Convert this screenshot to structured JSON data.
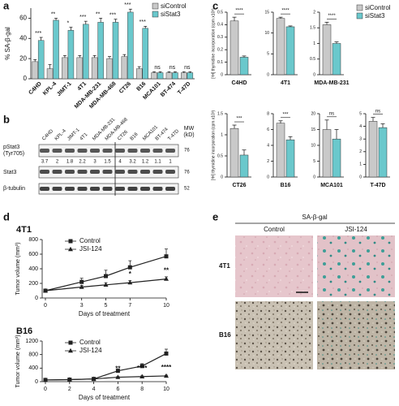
{
  "panel_labels": [
    "a",
    "b",
    "c",
    "d",
    "e"
  ],
  "chart_data": [
    {
      "type": "bar",
      "ylabel": "% SA-β-gal",
      "categories": [
        "C4HD",
        "KPL-4",
        "JIMT-1",
        "4T1",
        "MDA-MB-231",
        "MDA-MB-468",
        "CT26",
        "B16",
        "MCA101",
        "BT-474",
        "T-47D"
      ],
      "series": [
        {
          "name": "siControl",
          "color": "#c9c9c9",
          "values": [
            17,
            10,
            21,
            21,
            21,
            20,
            22,
            10,
            6,
            6,
            6
          ],
          "errors": [
            2,
            4,
            2,
            2,
            2,
            2,
            2,
            2,
            1,
            1,
            1
          ]
        },
        {
          "name": "siStat3",
          "color": "#6ac8cc",
          "values": [
            38,
            58,
            48,
            54,
            56,
            56,
            66,
            50,
            6,
            6,
            6
          ],
          "errors": [
            3,
            2,
            3,
            3,
            4,
            3,
            3,
            2,
            1,
            1,
            1
          ]
        }
      ],
      "annotations": [
        "***",
        "**",
        "*",
        "***",
        "**",
        "***",
        "***",
        "***",
        "ns",
        "ns",
        "ns"
      ],
      "ylim": [
        0,
        70
      ],
      "yticks": [
        0,
        20,
        40,
        60
      ],
      "legend": "upper right"
    },
    {
      "type": "bar",
      "ylabel": "[³H] thymidine incorporation (cpm x10³)",
      "series_names": [
        "siControl",
        "siStat3"
      ],
      "colors": [
        "#c9c9c9",
        "#6ac8cc"
      ],
      "legend": "upper right",
      "panels": [
        {
          "title": "C4HD",
          "values": [
            0.43,
            0.14
          ],
          "errors": [
            0.03,
            0.01
          ],
          "ylim": [
            0,
            0.5
          ],
          "yticks": [
            0,
            0.1,
            0.2,
            0.3,
            0.4,
            0.5
          ],
          "annotation": "****"
        },
        {
          "title": "4T1",
          "values": [
            13.5,
            11.5
          ],
          "errors": [
            0.3,
            0.2
          ],
          "ylim": [
            0,
            15
          ],
          "yticks": [
            0,
            5,
            10,
            15
          ],
          "annotation": "****"
        },
        {
          "title": "MDA-MB-231",
          "values": [
            1.6,
            1.0
          ],
          "errors": [
            0.08,
            0.05
          ],
          "ylim": [
            0,
            2
          ],
          "yticks": [
            0,
            0.5,
            1,
            1.5,
            2
          ],
          "annotation": "****"
        },
        {
          "title": "CT26",
          "values": [
            1.15,
            0.52
          ],
          "errors": [
            0.08,
            0.12
          ],
          "ylim": [
            0,
            1.5
          ],
          "yticks": [
            0,
            0.5,
            1,
            1.5
          ],
          "annotation": "***"
        },
        {
          "title": "B16",
          "values": [
            6.8,
            4.7
          ],
          "errors": [
            0.3,
            0.4
          ],
          "ylim": [
            0,
            8
          ],
          "yticks": [
            0,
            2,
            4,
            6,
            8
          ],
          "annotation": "***"
        },
        {
          "title": "MCA101",
          "values": [
            15,
            12
          ],
          "errors": [
            3,
            3
          ],
          "ylim": [
            0,
            20
          ],
          "yticks": [
            0,
            5,
            10,
            15,
            20
          ],
          "annotation": "ns"
        },
        {
          "title": "T-47D",
          "values": [
            4.4,
            3.9
          ],
          "errors": [
            0.3,
            0.3
          ],
          "ylim": [
            0,
            5
          ],
          "yticks": [
            0,
            1,
            2,
            3,
            4,
            5
          ],
          "annotation": "ns"
        }
      ]
    },
    {
      "type": "line",
      "title": "4T1",
      "ylabel": "Tumor volume (mm³)",
      "xlabel": "Days of treatment",
      "x": [
        0,
        3,
        5,
        7,
        10
      ],
      "xlim": [
        0,
        10
      ],
      "xticks": [
        0,
        3,
        5,
        7,
        10
      ],
      "ylim": [
        0,
        800
      ],
      "yticks": [
        0,
        200,
        400,
        600,
        800
      ],
      "series": [
        {
          "name": "Control",
          "color": "#222222",
          "marker": "square",
          "values": [
            100,
            220,
            300,
            420,
            570
          ],
          "errors": [
            10,
            50,
            80,
            90,
            100
          ]
        },
        {
          "name": "JSI-124",
          "color": "#222222",
          "marker": "triangle",
          "values": [
            100,
            150,
            180,
            210,
            260
          ],
          "errors": [
            10,
            20,
            30,
            30,
            30
          ]
        }
      ],
      "annotations": [
        {
          "x": 7,
          "text": "*"
        },
        {
          "x": 10,
          "text": "**"
        }
      ],
      "legend": "upper left"
    },
    {
      "type": "line",
      "title": "B16",
      "ylabel": "Tumor volume (mm³)",
      "xlabel": "Days of treatment",
      "x": [
        0,
        2,
        4,
        6,
        8,
        10
      ],
      "xlim": [
        0,
        10
      ],
      "xticks": [
        0,
        2,
        4,
        6,
        8,
        10
      ],
      "ylim": [
        0,
        1200
      ],
      "yticks": [
        0,
        400,
        800,
        1200
      ],
      "series": [
        {
          "name": "Control",
          "color": "#222222",
          "marker": "square",
          "values": [
            50,
            60,
            80,
            320,
            460,
            830
          ],
          "errors": [
            10,
            10,
            15,
            50,
            70,
            130
          ]
        },
        {
          "name": "JSI-124",
          "color": "#222222",
          "marker": "triangle",
          "values": [
            50,
            60,
            80,
            130,
            150,
            170
          ],
          "errors": [
            10,
            10,
            15,
            20,
            20,
            20
          ]
        }
      ],
      "annotations": [
        {
          "x": 6,
          "text": "**"
        },
        {
          "x": 8,
          "text": "****"
        },
        {
          "x": 10,
          "text": "****"
        }
      ],
      "legend": "upper left"
    }
  ],
  "blot": {
    "lanes": [
      "C4HD",
      "KPL-4",
      "JIMT-1",
      "4T1",
      "MDA-MB-231",
      "MDA-MB-468",
      "CT26",
      "B16",
      "MCA101",
      "BT-474",
      "T-47D"
    ],
    "mw_header": [
      "MW",
      "(kD)"
    ],
    "rows": [
      {
        "label": [
          "pStat3",
          "(Tyr705)"
        ],
        "mw": "76"
      },
      {
        "label": [
          "Stat3"
        ],
        "mw": "76"
      },
      {
        "label": [
          "β-tubulin"
        ],
        "mw": "52"
      }
    ],
    "quantification": [
      "3.7",
      "2",
      "1.8",
      "2.2",
      "3",
      "1.5",
      "4",
      "3.2",
      "1.2",
      "1.1",
      "1"
    ]
  },
  "images": {
    "header": "SA-β-gal",
    "columns": [
      "Control",
      "JSI-124"
    ],
    "rows": [
      "4T1",
      "B16"
    ]
  }
}
